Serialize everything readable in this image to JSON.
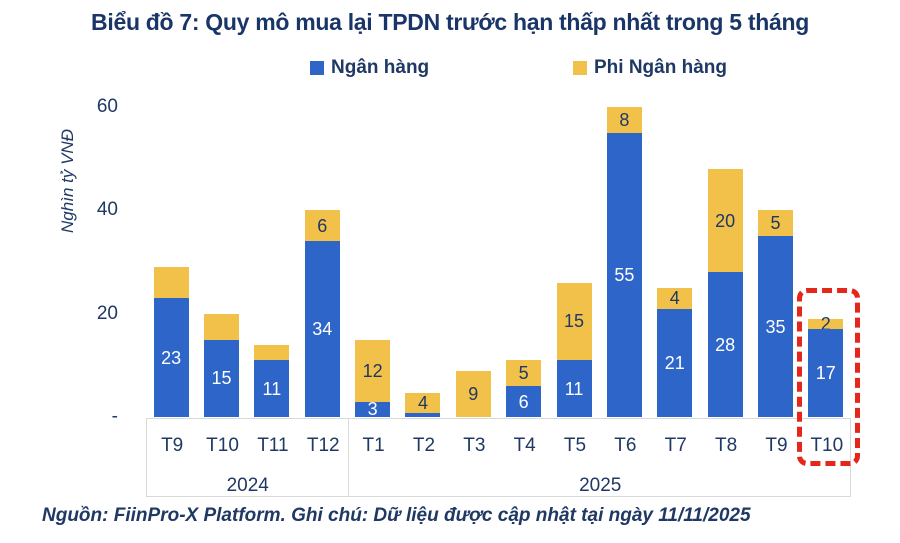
{
  "title": "Biểu đồ 7: Quy mô mua lại TPDN trước hạn thấp nhất trong 5 tháng",
  "legend": {
    "items": [
      {
        "label": "Ngân hàng",
        "color": "#2E65C9"
      },
      {
        "label": "Phi Ngân hàng",
        "color": "#F2C14A"
      }
    ]
  },
  "colors": {
    "bank": "#2E65C9",
    "non_bank": "#F2C14A",
    "navy_text": "#1F3864",
    "axis_line": "#D9D9D9",
    "highlight_red": "#E5261B"
  },
  "y_axis": {
    "title": "Nghìn tỷ VNĐ",
    "tick_labels": [
      "60",
      "40",
      "20",
      "-"
    ],
    "tick_values": [
      60,
      40,
      20,
      0
    ]
  },
  "chart_data": {
    "type": "bar",
    "stacked": true,
    "title": "Biểu đồ 7: Quy mô mua lại TPDN trước hạn thấp nhất trong 5 tháng",
    "ylabel": "Nghìn tỷ VNĐ",
    "ylim": [
      0,
      60
    ],
    "grid": false,
    "legend_position": "top",
    "categories": [
      "T9",
      "T10",
      "T11",
      "T12",
      "T1",
      "T2",
      "T3",
      "T4",
      "T5",
      "T6",
      "T7",
      "T8",
      "T9",
      "T10"
    ],
    "group_labels": [
      {
        "label": "2024",
        "start": 0,
        "span": 4
      },
      {
        "label": "2025",
        "start": 4,
        "span": 10
      }
    ],
    "series": [
      {
        "name": "Ngân hàng",
        "color": "#2E65C9",
        "values": [
          23,
          15,
          11,
          34,
          3,
          0.7,
          0,
          6,
          11,
          55,
          21,
          28,
          35,
          17
        ],
        "labels": [
          "23",
          "15",
          "11",
          "34",
          "3",
          "",
          "",
          "6",
          "11",
          "55",
          "21",
          "28",
          "35",
          "17"
        ]
      },
      {
        "name": "Phi Ngân hàng",
        "color": "#F2C14A",
        "values": [
          6,
          5,
          3,
          6,
          12,
          4,
          9,
          5,
          15,
          8,
          4,
          20,
          5,
          2
        ],
        "labels": [
          "",
          "",
          "",
          "6",
          "12",
          "4",
          "9",
          "5",
          "15",
          "8",
          "4",
          "20",
          "5",
          "2"
        ]
      }
    ],
    "highlight": {
      "category_index": 13,
      "category": "T10",
      "group": "2025",
      "style": "red-dashed-box"
    }
  },
  "source_note": "Nguồn: FiinPro-X Platform. Ghi chú: Dữ liệu được cập nhật tại ngày 11/11/2025"
}
